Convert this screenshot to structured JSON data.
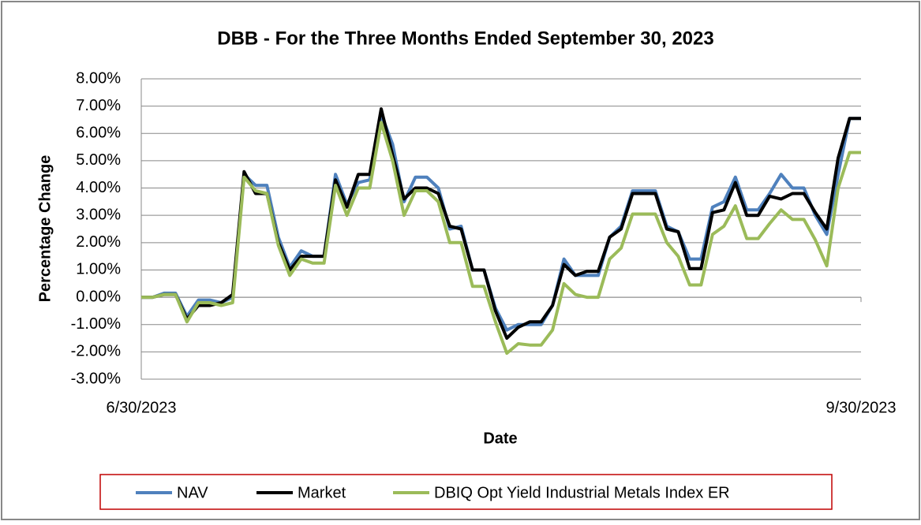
{
  "chart_data": {
    "type": "line",
    "title": "DBB - For the Three Months Ended September 30, 2023",
    "x_label": "Date",
    "y_label": "Percentage Change",
    "categories": [
      "6/30/2023",
      null,
      null,
      null,
      null,
      null,
      null,
      null,
      null,
      null,
      null,
      null,
      null,
      null,
      null,
      null,
      null,
      null,
      null,
      null,
      null,
      null,
      null,
      null,
      null,
      null,
      null,
      null,
      null,
      null,
      null,
      null,
      null,
      null,
      null,
      null,
      null,
      null,
      null,
      null,
      null,
      null,
      null,
      null,
      null,
      null,
      null,
      null,
      null,
      null,
      null,
      null,
      null,
      null,
      null,
      null,
      null,
      null,
      null,
      null,
      null,
      null,
      null,
      "9/30/2023"
    ],
    "series": [
      {
        "name": "NAV",
        "color": "#4f81bd",
        "values": [
          0,
          0,
          0.15,
          0.15,
          -0.7,
          -0.1,
          -0.1,
          -0.2,
          0.0,
          4.5,
          4.1,
          4.1,
          2.2,
          1.1,
          1.7,
          1.5,
          1.5,
          4.5,
          3.4,
          4.2,
          4.3,
          6.7,
          5.6,
          3.5,
          4.4,
          4.4,
          4.0,
          2.5,
          2.6,
          1.0,
          1.0,
          -0.4,
          -1.2,
          -1.0,
          -1.0,
          -1.0,
          -0.3,
          1.4,
          0.8,
          0.8,
          0.8,
          2.2,
          2.6,
          3.9,
          3.9,
          3.9,
          2.6,
          2.4,
          1.4,
          1.4,
          3.3,
          3.5,
          4.4,
          3.2,
          3.2,
          3.8,
          4.5,
          4.0,
          4.0,
          3.0,
          2.3,
          4.5,
          6.55,
          6.55
        ]
      },
      {
        "name": "Market",
        "color": "#000000",
        "values": [
          0,
          0,
          0.1,
          0.1,
          -0.8,
          -0.3,
          -0.3,
          -0.2,
          0.1,
          4.6,
          3.8,
          3.8,
          2.0,
          1.0,
          1.5,
          1.5,
          1.5,
          4.3,
          3.3,
          4.5,
          4.5,
          6.9,
          5.2,
          3.6,
          4.0,
          4.0,
          3.8,
          2.6,
          2.5,
          1.0,
          1.0,
          -0.5,
          -1.5,
          -1.1,
          -0.9,
          -0.9,
          -0.3,
          1.2,
          0.8,
          0.95,
          0.95,
          2.2,
          2.5,
          3.8,
          3.8,
          3.8,
          2.5,
          2.4,
          1.05,
          1.05,
          3.1,
          3.2,
          4.2,
          3.0,
          3.0,
          3.7,
          3.6,
          3.8,
          3.8,
          3.1,
          2.5,
          5.1,
          6.55,
          6.55
        ]
      },
      {
        "name": "DBIQ Opt Yield Industrial Metals Index ER",
        "color": "#9bbb59",
        "values": [
          0,
          0,
          0.1,
          0.1,
          -0.9,
          -0.2,
          -0.2,
          -0.3,
          -0.2,
          4.4,
          3.9,
          3.8,
          1.9,
          0.8,
          1.4,
          1.25,
          1.25,
          4.1,
          3.0,
          4.0,
          4.0,
          6.4,
          5.0,
          3.0,
          3.9,
          3.9,
          3.5,
          2.0,
          2.0,
          0.4,
          0.4,
          -0.9,
          -2.05,
          -1.7,
          -1.75,
          -1.75,
          -1.2,
          0.5,
          0.1,
          0.0,
          0.0,
          1.4,
          1.8,
          3.05,
          3.05,
          3.05,
          2.0,
          1.5,
          0.45,
          0.45,
          2.3,
          2.6,
          3.35,
          2.15,
          2.15,
          2.7,
          3.2,
          2.85,
          2.85,
          2.1,
          1.15,
          4.0,
          5.3,
          5.3
        ]
      }
    ],
    "ylim": [
      -3,
      8
    ],
    "yticks": [
      {
        "value": -3,
        "label": "-3.00%"
      },
      {
        "value": -2,
        "label": "-2.00%"
      },
      {
        "value": -1,
        "label": "-1.00%"
      },
      {
        "value": 0,
        "label": "0.00%"
      },
      {
        "value": 1,
        "label": "1.00%"
      },
      {
        "value": 2,
        "label": "2.00%"
      },
      {
        "value": 3,
        "label": "3.00%"
      },
      {
        "value": 4,
        "label": "4.00%"
      },
      {
        "value": 5,
        "label": "5.00%"
      },
      {
        "value": 6,
        "label": "6.00%"
      },
      {
        "value": 7,
        "label": "7.00%"
      },
      {
        "value": 8,
        "label": "8.00%"
      }
    ],
    "grid": true,
    "legend": "bottom"
  }
}
